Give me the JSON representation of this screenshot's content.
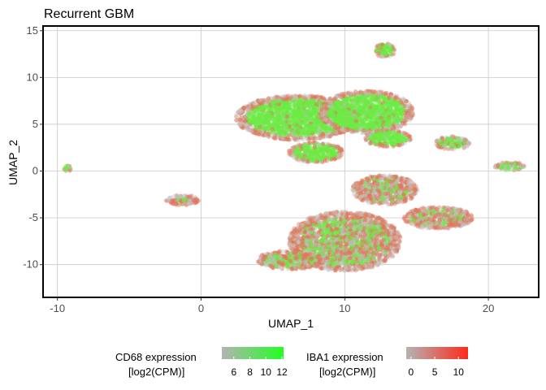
{
  "chart_data": {
    "type": "scatter",
    "title": "Recurrent GBM",
    "xlabel": "UMAP_1",
    "ylabel": "UMAP_2",
    "xlim": [
      -11,
      23.5
    ],
    "ylim": [
      -13.5,
      15.5
    ],
    "x_ticks": [
      -10,
      0,
      10,
      20
    ],
    "y_ticks": [
      15,
      10,
      5,
      0,
      -5,
      -10
    ],
    "grid": true,
    "legend_position": "bottom",
    "legends": [
      {
        "title_line1": "CD68 expression",
        "title_line2": "[log2(CPM)]",
        "ticks": [
          6,
          8,
          10,
          12
        ],
        "range": [
          4.5,
          12.2
        ],
        "color_low": "#b3b3b3",
        "color_high": "#22ff22"
      },
      {
        "title_line1": "IBA1 expression",
        "title_line2": "[log2(CPM)]",
        "ticks": [
          0,
          5,
          10
        ],
        "range": [
          -1,
          12
        ],
        "color_low": "#b3b3b3",
        "color_high": "#ff2a1a"
      }
    ],
    "clusters": [
      {
        "name": "small-top-right",
        "cx": 12.8,
        "cy": 12.9,
        "rx": 0.75,
        "ry": 0.75,
        "green": 0.9
      },
      {
        "name": "large-upper",
        "cx": 6.7,
        "cy": 5.7,
        "rx": 4.3,
        "ry": 2.4,
        "green": 0.92
      },
      {
        "name": "large-upper-right",
        "cx": 11.5,
        "cy": 6.3,
        "rx": 3.3,
        "ry": 2.3,
        "green": 0.92
      },
      {
        "name": "upper-bottom-lobe",
        "cx": 8.0,
        "cy": 2.0,
        "rx": 1.9,
        "ry": 1.1,
        "green": 0.92
      },
      {
        "name": "upper-right-arm",
        "cx": 13.0,
        "cy": 3.5,
        "rx": 1.6,
        "ry": 0.9,
        "green": 0.9
      },
      {
        "name": "small-right",
        "cx": 17.5,
        "cy": 3.0,
        "rx": 1.2,
        "ry": 0.7,
        "green": 0.7
      },
      {
        "name": "small-far-right",
        "cx": 21.5,
        "cy": 0.5,
        "rx": 1.1,
        "ry": 0.45,
        "green": 0.6
      },
      {
        "name": "tiny-left",
        "cx": -9.3,
        "cy": 0.3,
        "rx": 0.25,
        "ry": 0.35,
        "green": 0.8
      },
      {
        "name": "small-left",
        "cx": -1.3,
        "cy": -3.1,
        "rx": 1.15,
        "ry": 0.55,
        "green": 0.25
      },
      {
        "name": "lower-main",
        "cx": 10.0,
        "cy": -7.5,
        "rx": 3.9,
        "ry": 3.2,
        "green": 0.35
      },
      {
        "name": "lower-left-tail",
        "cx": 6.2,
        "cy": -9.5,
        "rx": 2.3,
        "ry": 1.0,
        "green": 0.35
      },
      {
        "name": "lower-top",
        "cx": 12.8,
        "cy": -2.0,
        "rx": 2.3,
        "ry": 1.6,
        "green": 0.3
      },
      {
        "name": "lower-right-arm",
        "cx": 16.5,
        "cy": -5.0,
        "rx": 2.4,
        "ry": 1.2,
        "green": 0.25
      }
    ]
  }
}
